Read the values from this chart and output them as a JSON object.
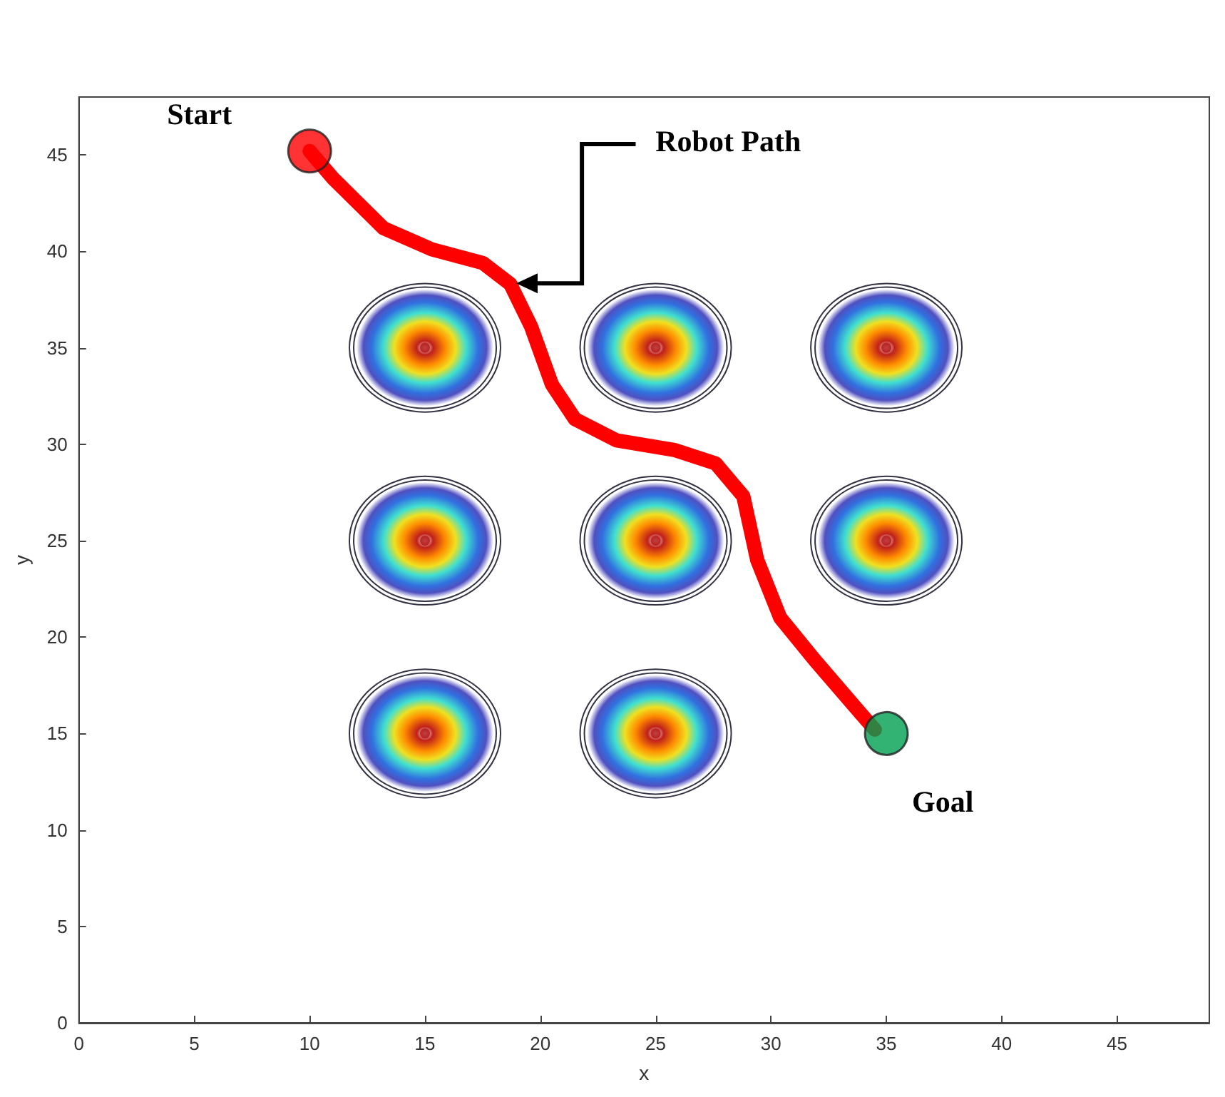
{
  "chart_data": {
    "type": "line",
    "xlabel": "x",
    "ylabel": "y",
    "xlim": [
      0,
      49
    ],
    "ylim": [
      0,
      48
    ],
    "xticks": [
      0,
      5,
      10,
      15,
      20,
      25,
      30,
      35,
      40,
      45
    ],
    "yticks": [
      0,
      5,
      10,
      15,
      20,
      25,
      30,
      35,
      40,
      45
    ],
    "line_style": "solid",
    "series": [
      {
        "type": "scatter",
        "color": "#b01010",
        "x": [
          15,
          25,
          35,
          15,
          25,
          35,
          15,
          25
        ],
        "values": [
          35,
          35,
          35,
          25,
          25,
          25,
          15,
          15
        ]
      },
      {
        "color": "#ff0000",
        "x": [
          10,
          11.0,
          13.2,
          15.3,
          17.5,
          18.7,
          19.6,
          20.5,
          21.5,
          23.3,
          25.8,
          27.6,
          28.8,
          29.4,
          30.4,
          31.9,
          33.7,
          34.5
        ],
        "values": [
          45.2,
          43.8,
          41.2,
          40.1,
          39.4,
          38.3,
          36.1,
          33.1,
          31.3,
          30.2,
          29.7,
          29.0,
          27.3,
          24.0,
          21.0,
          18.8,
          16.3,
          15.2
        ]
      },
      {
        "type": "scatter",
        "color": "#ff0000",
        "x": [
          10
        ],
        "values": [
          45.2
        ]
      },
      {
        "type": "scatter",
        "color": "#00a050",
        "x": [
          35
        ],
        "values": [
          15
        ]
      }
    ],
    "annotations": [
      {
        "text": "Start",
        "x": 10,
        "y": 45.2
      },
      "Robot Path",
      {
        "text": "Goal",
        "x": 35,
        "y": 15
      }
    ]
  }
}
